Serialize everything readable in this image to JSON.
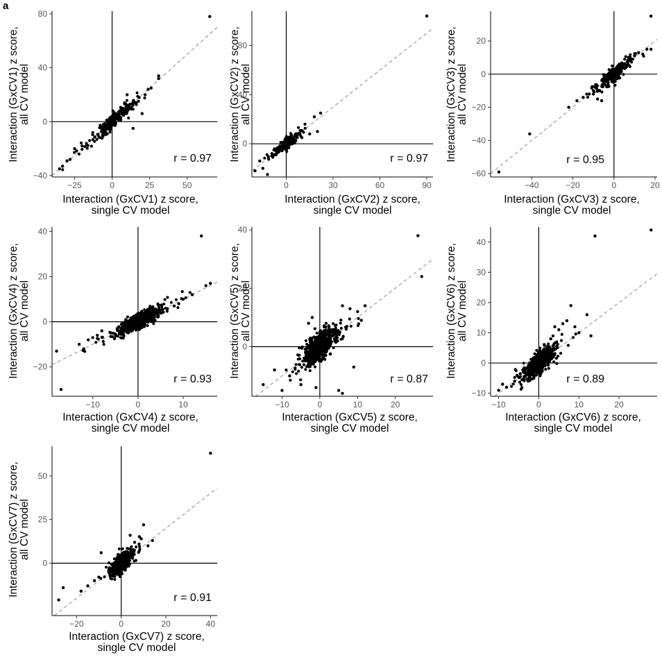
{
  "figure": {
    "panel_letter": "a"
  },
  "chart_data": [
    {
      "type": "scatter",
      "id": "cv1",
      "xlabel": [
        "Interaction (GxCV1) z score,",
        "single CV model"
      ],
      "ylabel": [
        "Interaction (GxCV1) z score,",
        "all CV model"
      ],
      "xlim": [
        -40,
        70
      ],
      "ylim": [
        -41,
        82
      ],
      "xticks": [
        -25,
        0,
        25,
        50
      ],
      "yticks": [
        -40,
        0,
        40,
        80
      ],
      "xtick_labels": [
        "−25",
        "0",
        "25",
        "50"
      ],
      "ytick_labels": [
        "−40",
        "0",
        "40",
        "80"
      ],
      "r_label": "r = 0.97",
      "cloud": {
        "n": 220,
        "sx": 9,
        "slope": 1.05,
        "noise": 2.5
      },
      "points": [
        [
          65,
          78
        ],
        [
          31,
          34
        ],
        [
          31,
          32
        ],
        [
          26,
          25
        ],
        [
          24,
          24
        ],
        [
          22,
          20
        ],
        [
          18,
          18
        ],
        [
          10,
          20
        ],
        [
          20,
          6
        ],
        [
          14,
          -5
        ],
        [
          -28,
          -28
        ],
        [
          -30,
          -29
        ],
        [
          -33,
          -33
        ],
        [
          -35,
          -35
        ],
        [
          -25,
          -20
        ],
        [
          -22,
          -24
        ],
        [
          -20,
          -18
        ],
        [
          12,
          10
        ],
        [
          16,
          14
        ]
      ]
    },
    {
      "type": "scatter",
      "id": "cv2",
      "xlabel": [
        "Interaction (GxCV2) z score,",
        "single CV model"
      ],
      "ylabel": [
        "Interaction (GxCV2) z score,",
        "all CV model"
      ],
      "xlim": [
        -22,
        94
      ],
      "ylim": [
        -27,
        108
      ],
      "xticks": [
        0,
        30,
        60,
        90
      ],
      "yticks": [
        0,
        40,
        80
      ],
      "xtick_labels": [
        "0",
        "30",
        "60",
        "90"
      ],
      "ytick_labels": [
        "0",
        "40",
        "80"
      ],
      "r_label": "r = 0.97",
      "cloud": {
        "n": 200,
        "sx": 6,
        "slope": 1.0,
        "noise": 2.2
      },
      "points": [
        [
          90,
          104
        ],
        [
          22,
          25
        ],
        [
          18,
          22
        ],
        [
          20,
          10
        ],
        [
          15,
          8
        ],
        [
          -15,
          -20
        ],
        [
          -20,
          -22
        ],
        [
          -12,
          -25
        ],
        [
          -17,
          -14
        ],
        [
          12,
          16
        ],
        [
          10,
          5
        ]
      ]
    },
    {
      "type": "scatter",
      "id": "cv3",
      "xlabel": [
        "Interaction (GxCV3) z score,",
        "single CV model"
      ],
      "ylabel": [
        "Interaction (GxCV3) z score,",
        "all CV model"
      ],
      "xlim": [
        -60,
        21
      ],
      "ylim": [
        -62,
        38
      ],
      "xticks": [
        -40,
        -20,
        0,
        20
      ],
      "yticks": [
        -60,
        -40,
        -20,
        0,
        20
      ],
      "xtick_labels": [
        "−40",
        "−20",
        "0",
        "20"
      ],
      "ytick_labels": [
        "−60",
        "−40",
        "−20",
        "0",
        "20"
      ],
      "r_label": "r = 0.95",
      "cloud": {
        "n": 220,
        "sx": 5.5,
        "slope": 1.0,
        "noise": 2.2
      },
      "points": [
        [
          -56,
          -59
        ],
        [
          -41,
          -36
        ],
        [
          -22,
          -20
        ],
        [
          -18,
          -16
        ],
        [
          -15,
          -14
        ],
        [
          -12,
          -12
        ],
        [
          -10,
          -12
        ],
        [
          18,
          35
        ],
        [
          16,
          15
        ],
        [
          18,
          15
        ],
        [
          12,
          13
        ],
        [
          14,
          12
        ],
        [
          10,
          11
        ],
        [
          -8,
          -15
        ],
        [
          -6,
          -16
        ]
      ]
    },
    {
      "type": "scatter",
      "id": "cv4",
      "xlabel": [
        "Interaction (GxCV4) z score,",
        "single CV model"
      ],
      "ylabel": [
        "Interaction (GxCV4) z score,",
        "all CV model"
      ],
      "xlim": [
        -19,
        17.5
      ],
      "ylim": [
        -33,
        42
      ],
      "xticks": [
        -10,
        0,
        10
      ],
      "yticks": [
        -20,
        0,
        20,
        40
      ],
      "xtick_labels": [
        "−10",
        "0",
        "10"
      ],
      "ytick_labels": [
        "−20",
        "0",
        "20",
        "40"
      ],
      "r_label": "r = 0.93",
      "cloud": {
        "n": 650,
        "sx": 3.0,
        "slope": 1.0,
        "noise": 1.6
      },
      "points": [
        [
          14,
          38
        ],
        [
          16,
          17
        ],
        [
          15,
          16
        ],
        [
          10,
          10
        ],
        [
          12,
          12
        ],
        [
          -17,
          -30
        ],
        [
          -18,
          -13
        ],
        [
          -12,
          -12
        ],
        [
          -13,
          -10
        ],
        [
          -10,
          -7
        ],
        [
          -9,
          -6
        ],
        [
          -11,
          -8
        ],
        [
          -8,
          -4
        ],
        [
          8,
          7
        ],
        [
          9,
          8
        ]
      ]
    },
    {
      "type": "scatter",
      "id": "cv5",
      "xlabel": [
        "Interaction (GxCV5) z score,",
        "single CV model"
      ],
      "ylabel": [
        "Interaction (GxCV5) z score,",
        "all CV model"
      ],
      "xlim": [
        -18,
        30
      ],
      "ylim": [
        -17,
        41
      ],
      "xticks": [
        -10,
        0,
        10,
        20
      ],
      "yticks": [
        0,
        20,
        40
      ],
      "xtick_labels": [
        "−10",
        "0",
        "10",
        "20"
      ],
      "ytick_labels": [
        "0",
        "20",
        "40"
      ],
      "r_label": "r = 0.87",
      "cloud": {
        "n": 650,
        "sx": 2.6,
        "slope": 0.95,
        "noise": 2.3
      },
      "points": [
        [
          26,
          38
        ],
        [
          27,
          24
        ],
        [
          12,
          14
        ],
        [
          10,
          12
        ],
        [
          11,
          9
        ],
        [
          8,
          13
        ],
        [
          6,
          14
        ],
        [
          -2,
          10
        ],
        [
          -5,
          -13
        ],
        [
          -10,
          -15
        ],
        [
          -15,
          -13
        ],
        [
          -1,
          -14
        ],
        [
          5,
          -15
        ],
        [
          6,
          -16
        ],
        [
          -8,
          -10
        ],
        [
          -12,
          -8
        ],
        [
          9,
          -7
        ],
        [
          7,
          6
        ],
        [
          -3,
          8
        ]
      ]
    },
    {
      "type": "scatter",
      "id": "cv6",
      "xlabel": [
        "Interaction (GxCV6) z score,",
        "single CV model"
      ],
      "ylabel": [
        "Interaction (GxCV6) z score,",
        "all CV model"
      ],
      "xlim": [
        -12,
        29.5
      ],
      "ylim": [
        -11,
        45
      ],
      "xticks": [
        -10,
        0,
        10,
        20
      ],
      "yticks": [
        -10,
        0,
        10,
        20,
        30,
        40
      ],
      "xtick_labels": [
        "−10",
        "0",
        "10",
        "20"
      ],
      "ytick_labels": [
        "−10",
        "0",
        "10",
        "20",
        "30",
        "40"
      ],
      "r_label": "r = 0.89",
      "cloud": {
        "n": 650,
        "sx": 2.2,
        "slope": 1.0,
        "noise": 1.7
      },
      "points": [
        [
          28,
          44
        ],
        [
          14,
          42
        ],
        [
          8,
          19
        ],
        [
          12,
          16
        ],
        [
          13,
          9
        ],
        [
          10,
          10
        ],
        [
          9,
          12
        ],
        [
          7,
          14
        ],
        [
          6,
          13
        ],
        [
          5,
          11
        ],
        [
          -10,
          -9
        ],
        [
          -8,
          -8
        ],
        [
          -9,
          -7
        ],
        [
          -6,
          -6
        ],
        [
          2,
          5
        ],
        [
          3,
          8
        ],
        [
          4,
          12
        ]
      ]
    },
    {
      "type": "scatter",
      "id": "cv7",
      "xlabel": [
        "Interaction (GxCV7) z score,",
        "single CV model"
      ],
      "ylabel": [
        "Interaction (GxCV7) z score,",
        "all CV model"
      ],
      "xlim": [
        -31,
        43
      ],
      "ylim": [
        -30,
        67
      ],
      "xticks": [
        -20,
        0,
        20,
        40
      ],
      "yticks": [
        0,
        25,
        50
      ],
      "xtick_labels": [
        "−20",
        "0",
        "20",
        "40"
      ],
      "ytick_labels": [
        "0",
        "25",
        "50"
      ],
      "r_label": "r = 0.91",
      "cloud": {
        "n": 650,
        "sx": 2.6,
        "slope": 1.0,
        "noise": 2.3
      },
      "points": [
        [
          40,
          63
        ],
        [
          10,
          22
        ],
        [
          14,
          13
        ],
        [
          12,
          10
        ],
        [
          9,
          14
        ],
        [
          8,
          11
        ],
        [
          -26,
          -14
        ],
        [
          -28,
          -21
        ],
        [
          -15,
          -13
        ],
        [
          -18,
          -16
        ],
        [
          -9,
          6
        ],
        [
          -12,
          -10
        ],
        [
          -10,
          -8
        ],
        [
          6,
          12
        ],
        [
          4,
          16
        ]
      ]
    }
  ]
}
